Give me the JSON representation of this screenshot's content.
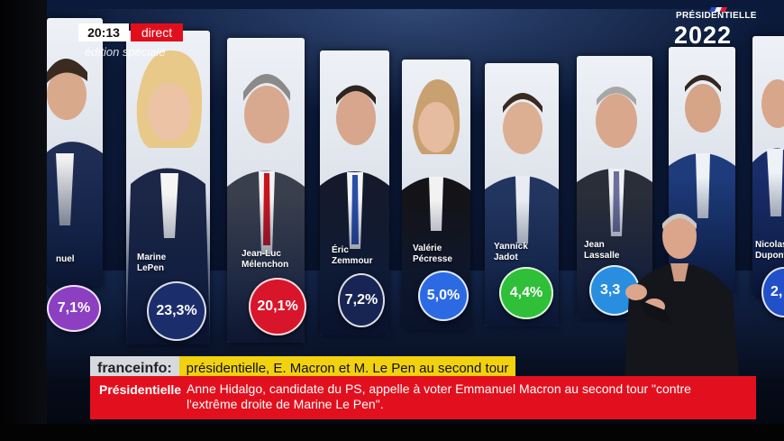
{
  "broadcast": {
    "time": "20:13",
    "live_label": "direct",
    "edition_label": "édition spéciale",
    "logo_top": "PRÉSIDENTIELLE",
    "logo_year": "2022",
    "brand": "franceinfo:",
    "headline": "présidentielle, E. Macron et M. Le Pen au second tour",
    "ticker_label": "Présidentielle",
    "ticker_text": "Anne Hidalgo, candidate du PS, appelle à voter Emmanuel Macron au second tour \"contre l'extrême droite de Marine Le Pen\"."
  },
  "candidates": [
    {
      "name_line1": "nuel",
      "name_line2": "",
      "score": "7,1%",
      "color": "#8d3fc2"
    },
    {
      "name_line1": "Marine",
      "name_line2": "LePen",
      "score": "23,3%",
      "color": "#1b2d6b"
    },
    {
      "name_line1": "Jean-Luc",
      "name_line2": "Mélenchon",
      "score": "20,1%",
      "color": "#d8152a"
    },
    {
      "name_line1": "Éric",
      "name_line2": "Zemmour",
      "score": "7,2%",
      "color": "#182453"
    },
    {
      "name_line1": "Valérie",
      "name_line2": "Pécresse",
      "score": "5,0%",
      "color": "#2c6ae3"
    },
    {
      "name_line1": "Yannick",
      "name_line2": "Jadot",
      "score": "4,4%",
      "color": "#2fbf38"
    },
    {
      "name_line1": "Jean",
      "name_line2": "Lassalle",
      "score": "3,3",
      "color": "#2a8ee0"
    },
    {
      "name_line1": "",
      "name_line2": "",
      "score": "",
      "color": "#2c4aa0"
    },
    {
      "name_line1": "Nicolas",
      "name_line2": "Dupont",
      "score": "2,",
      "color": "#2150c8"
    }
  ]
}
